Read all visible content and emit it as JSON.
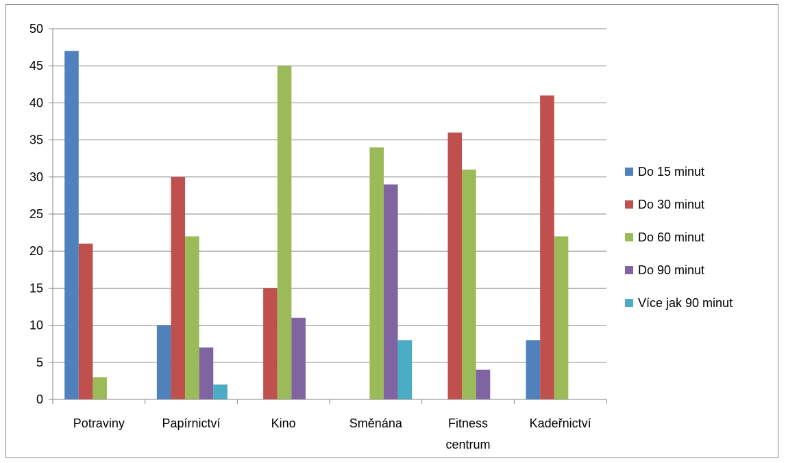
{
  "chart_data": {
    "type": "bar",
    "categories": [
      [
        "Potraviny"
      ],
      [
        "Papírnictví"
      ],
      [
        "Kino"
      ],
      [
        "Směnána"
      ],
      [
        "Fitness",
        "centrum"
      ],
      [
        "Kadeřnictví"
      ]
    ],
    "series": [
      {
        "name": "Do 15 minut",
        "color": "#4F81BD",
        "values": [
          47,
          10,
          0,
          0,
          0,
          8
        ]
      },
      {
        "name": "Do 30 minut",
        "color": "#C0504D",
        "values": [
          21,
          30,
          15,
          0,
          36,
          41
        ]
      },
      {
        "name": "Do 60 minut",
        "color": "#9BBB59",
        "values": [
          3,
          22,
          45,
          34,
          31,
          22
        ]
      },
      {
        "name": "Do 90 minut",
        "color": "#8064A2",
        "values": [
          0,
          7,
          11,
          29,
          4,
          0
        ]
      },
      {
        "name": "Více jak 90 minut",
        "color": "#4BACC6",
        "values": [
          0,
          2,
          0,
          8,
          0,
          0
        ]
      }
    ],
    "ylim": [
      0,
      50
    ],
    "yticks": [
      0,
      5,
      10,
      15,
      20,
      25,
      30,
      35,
      40,
      45,
      50
    ],
    "grid": true,
    "legend": "right",
    "title": "",
    "xlabel": "",
    "ylabel": ""
  }
}
